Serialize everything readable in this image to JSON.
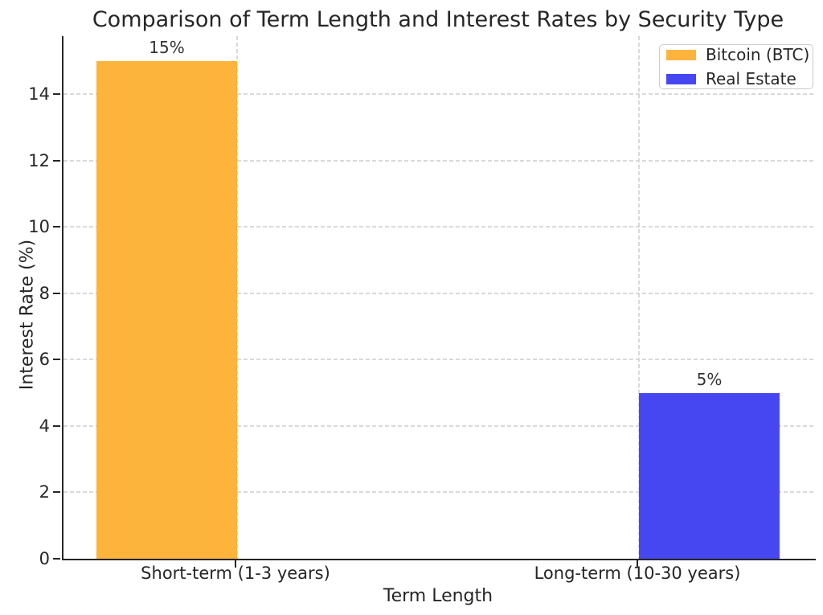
{
  "chart_data": {
    "type": "bar",
    "title": "Comparison of Term Length and Interest Rates by Security Type",
    "xlabel": "Term Length",
    "ylabel": "Interest Rate (%)",
    "categories": [
      "Short-term (1-3 years)",
      "Long-term (10-30 years)"
    ],
    "series": [
      {
        "name": "Bitcoin (BTC)",
        "color": "#fcb43c",
        "values": [
          15,
          null
        ]
      },
      {
        "name": "Real Estate",
        "color": "#4747f2",
        "values": [
          null,
          5
        ]
      }
    ],
    "bar_labels": [
      "15%",
      "5%"
    ],
    "yticks": [
      0,
      2,
      4,
      6,
      8,
      10,
      12,
      14
    ],
    "ylim": [
      0,
      15.75
    ],
    "grid": "dashed-both-axes",
    "legend_position": "upper right",
    "colors": {
      "text": "#262626",
      "gridline": "#d9d9d9",
      "spine": "#262626",
      "background": "#ffffff"
    }
  }
}
